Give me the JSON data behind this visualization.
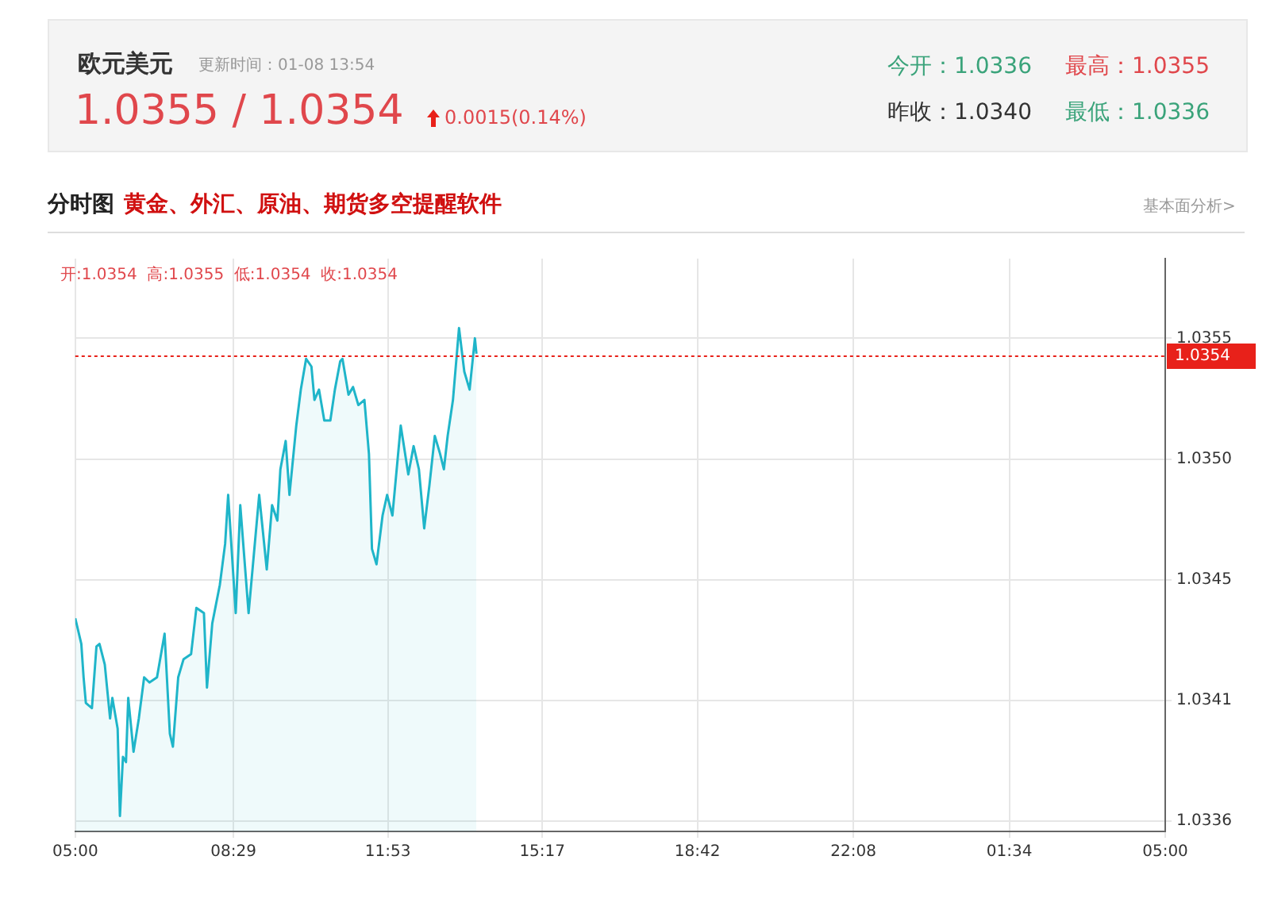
{
  "chart_data": {
    "type": "area",
    "title": "欧元美元",
    "annotations": [
      "更新时间：01-08 13:54",
      "1.0355 / 1.0354",
      "0.0015(0.14%)",
      "今开：1.0336",
      "最高：1.0355",
      "昨收：1.0340",
      "最低：1.0336",
      "分时图",
      "黄金、外汇、原油、期货多空提醒软件",
      "基本面分析>",
      "开:1.0354  高:1.0355  低:1.0354  收:1.0354"
    ],
    "x": [
      "--01-08T05:00",
      "--01-08T05:08",
      "--01-08T05:11",
      "--01-08T05:14",
      "--01-08T05:22",
      "--01-08T05:28",
      "--01-08T05:32",
      "--01-08T05:39",
      "--01-08T05:46",
      "--01-08T05:49",
      "--01-08T05:56",
      "--01-08T05:59",
      "--01-08T06:03",
      "--01-08T06:07",
      "--01-08T06:10",
      "--01-08T06:17",
      "--01-08T06:24",
      "--01-08T06:31",
      "--01-08T06:38",
      "--01-08T06:48",
      "--01-08T06:58",
      "--01-08T07:05",
      "--01-08T07:09",
      "--01-08T07:16",
      "--01-08T07:23",
      "--01-08T07:33",
      "--01-08T07:40",
      "--01-08T07:50",
      "--01-08T07:54",
      "--01-08T08:01",
      "--01-08T08:11",
      "--01-08T08:18",
      "--01-08T08:22",
      "--01-08T08:32",
      "--01-08T08:38",
      "--01-08T08:49",
      "--01-08T08:56",
      "--01-08T09:03",
      "--01-08T09:13",
      "--01-08T09:20",
      "--01-08T09:27",
      "--01-08T09:31",
      "--01-08T09:38",
      "--01-08T09:43",
      "--01-08T09:52",
      "--01-08T09:58",
      "--01-08T10:05",
      "--01-08T10:12",
      "--01-08T10:16",
      "--01-08T10:22",
      "--01-08T10:29",
      "--01-08T10:37",
      "--01-08T10:43",
      "--01-08T10:50",
      "--01-08T10:53",
      "--01-08T11:01",
      "--01-08T11:07",
      "--01-08T11:14",
      "--01-08T11:22",
      "--01-08T11:28",
      "--01-08T11:32",
      "--01-08T11:38",
      "--01-08T11:46",
      "--01-08T11:52",
      "--01-08T11:59",
      "--01-08T12:10",
      "--01-08T12:20",
      "--01-08T12:27",
      "--01-08T12:34",
      "--01-08T12:41",
      "--01-08T12:48",
      "--01-08T12:55",
      "--01-08T13:02",
      "--01-08T13:07",
      "--01-08T13:12",
      "--01-08T13:19",
      "--01-08T13:27",
      "--01-08T13:34",
      "--01-08T13:41",
      "--01-08T13:48",
      "--01-08T13:50"
    ],
    "series": [
      {
        "color": "#1fb5c9",
        "values": [
          1.03438,
          1.03428,
          1.03415,
          1.03405,
          1.03403,
          1.03427,
          1.03428,
          1.0342,
          1.03399,
          1.03407,
          1.03395,
          1.03361,
          1.03384,
          1.03382,
          1.03407,
          1.03386,
          1.03399,
          1.03415,
          1.03413,
          1.03415,
          1.03432,
          1.03393,
          1.03388,
          1.03415,
          1.03422,
          1.03424,
          1.03442,
          1.0344,
          1.03411,
          1.03436,
          1.03451,
          1.03467,
          1.03486,
          1.0344,
          1.03482,
          1.0344,
          1.03463,
          1.03486,
          1.03457,
          1.03482,
          1.03476,
          1.03496,
          1.03507,
          1.03486,
          1.03513,
          1.03527,
          1.03539,
          1.03536,
          1.03523,
          1.03527,
          1.03515,
          1.03515,
          1.03527,
          1.03538,
          1.03539,
          1.03525,
          1.03528,
          1.03521,
          1.03523,
          1.03502,
          1.03465,
          1.03459,
          1.03478,
          1.03486,
          1.03478,
          1.03513,
          1.03494,
          1.03505,
          1.03496,
          1.03473,
          1.0349,
          1.03509,
          1.03502,
          1.03496,
          1.03509,
          1.03523,
          1.03551,
          1.03534,
          1.03527,
          1.03547,
          1.03541
        ]
      }
    ],
    "xlim": [
      "--01-08T05:00",
      "--01-09T05:00"
    ],
    "xticks": [
      {
        "value": "--01-08T05:00",
        "label": "05:00"
      },
      {
        "value": "--01-08T08:29",
        "label": "08:29"
      },
      {
        "value": "--01-08T11:53",
        "label": "11:53"
      },
      {
        "value": "--01-08T15:17",
        "label": "15:17"
      },
      {
        "value": "--01-08T18:42",
        "label": "18:42"
      },
      {
        "value": "--01-08T22:08",
        "label": "22:08"
      },
      {
        "value": "--01-09T01:34",
        "label": "01:34"
      },
      {
        "value": "--01-09T05:00",
        "label": "05:00"
      }
    ],
    "ylim": [
      1.03355,
      1.03578
    ],
    "yticks": [
      {
        "value": 1.03359,
        "label": "1.0336"
      },
      {
        "value": 1.03406,
        "label": "1.0341"
      },
      {
        "value": 1.03453,
        "label": "1.0345"
      },
      {
        "value": 1.035,
        "label": "1.0350"
      },
      {
        "value": 1.03547,
        "label": "1.0355"
      }
    ],
    "ref_lines": [
      {
        "axis": "y",
        "value": 1.0354,
        "label": "1.0354",
        "color": "#e8211a",
        "line_style": "dotted"
      }
    ],
    "grid": true,
    "legend": false,
    "marker": "none",
    "line_style": "solid"
  }
}
